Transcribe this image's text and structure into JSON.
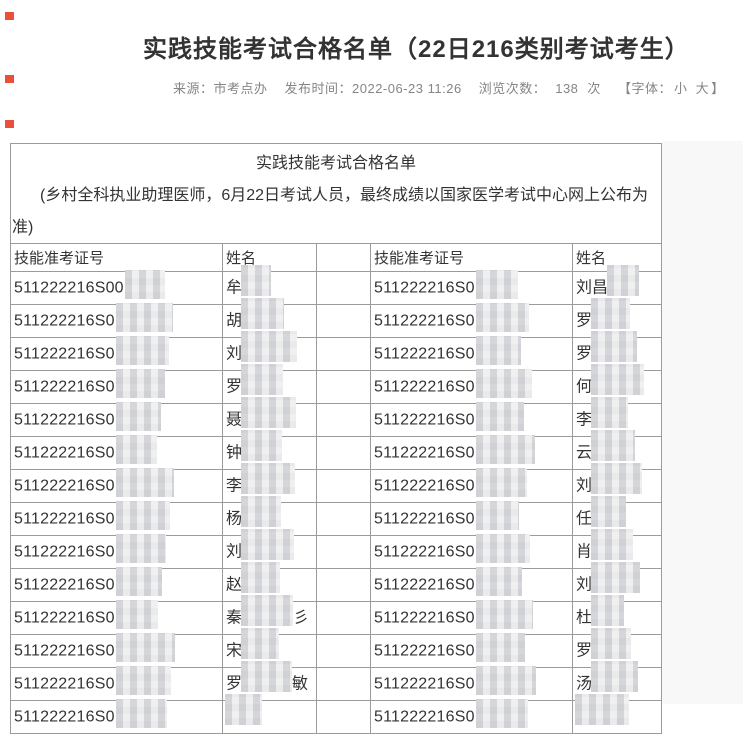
{
  "page": {
    "title": "实践技能考试合格名单（22日216类别考试考生）",
    "meta": {
      "source": "来源：市考点办",
      "publish": "发布时间：2022-06-23 11:26",
      "views_label": "浏览次数：",
      "views_count": "138",
      "views_unit": "次",
      "font_prefix": "【字体：",
      "font_small": "小",
      "font_large": "大",
      "font_suffix": "】"
    },
    "icons": {
      "red_marker": "small-red-square-bullet"
    }
  },
  "table": {
    "title": "实践技能考试合格名单",
    "note_line1": "(乡村全科执业助理医师，6月22日考试人员，最终成绩以国家医学考试中心网上公布为",
    "note_line2": "准)",
    "headers": [
      "技能准考证号",
      "姓名",
      "",
      "技能准考证号",
      "姓名"
    ],
    "rows": [
      {
        "id1": "511222216S00",
        "name1": "牟",
        "id2": "511222216S0",
        "name2": "刘昌"
      },
      {
        "id1": "511222216S0",
        "name1": "胡",
        "id2": "511222216S0",
        "name2": "罗"
      },
      {
        "id1": "511222216S0",
        "name1": "刘",
        "id2": "511222216S0",
        "name2": "罗"
      },
      {
        "id1": "511222216S0",
        "name1": "罗",
        "id2": "511222216S0",
        "name2": "何"
      },
      {
        "id1": "511222216S0",
        "name1": "聂",
        "id2": "511222216S0",
        "name2": "李"
      },
      {
        "id1": "511222216S0",
        "name1": "钟",
        "id2": "511222216S0",
        "name2": "云"
      },
      {
        "id1": "511222216S0",
        "name1": "李",
        "id2": "511222216S0",
        "name2": "刘"
      },
      {
        "id1": "511222216S0",
        "name1": "杨",
        "id2": "511222216S0",
        "name2": "任"
      },
      {
        "id1": "511222216S0",
        "name1": "刘",
        "id2": "511222216S0",
        "name2": "肖"
      },
      {
        "id1": "511222216S0",
        "name1": "赵",
        "id2": "511222216S0",
        "name2": "刘"
      },
      {
        "id1": "511222216S0",
        "name1": "秦",
        "name1_suffix": "彡",
        "id2": "511222216S0",
        "name2": "杜"
      },
      {
        "id1": "511222216S0",
        "name1": "宋",
        "id2": "511222216S0",
        "name2": "罗"
      },
      {
        "id1": "511222216S0",
        "name1": "罗",
        "name1_suffix": "敏",
        "id2": "511222216S0",
        "name2": "汤"
      },
      {
        "id1": "511222216S0",
        "name1": "",
        "id2": "511222216S0",
        "name2": ""
      }
    ]
  }
}
